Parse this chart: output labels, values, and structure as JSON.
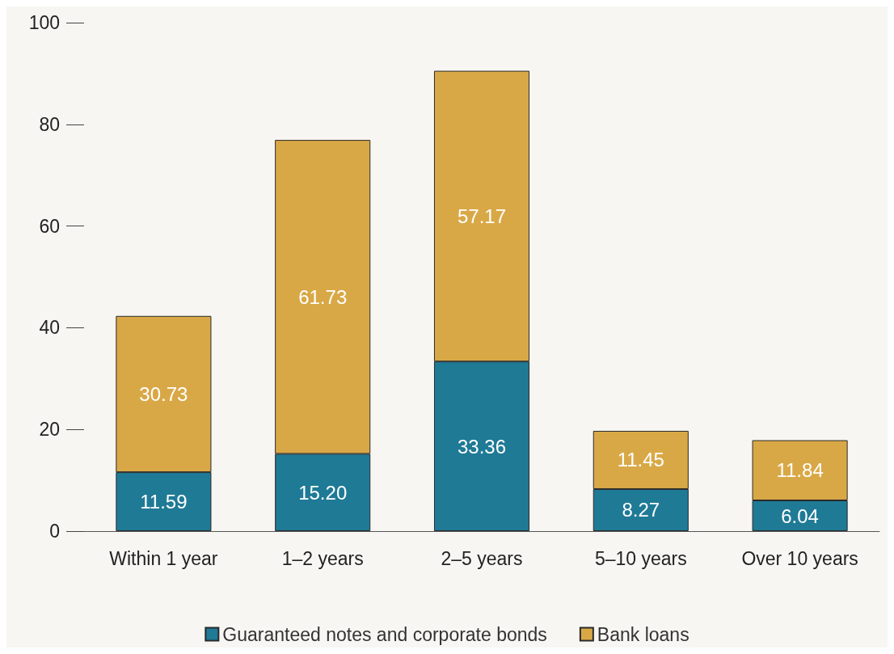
{
  "chart_data": {
    "type": "bar",
    "stacked": true,
    "categories": [
      "Within 1 year",
      "1–2 years",
      "2–5 years",
      "5–10 years",
      "Over 10 years"
    ],
    "series": [
      {
        "name": "Guaranteed notes and corporate bonds",
        "color": "#1f7a96",
        "values": [
          11.59,
          15.2,
          33.36,
          8.27,
          6.04
        ],
        "value_labels": [
          "11.59",
          "15.20",
          "33.36",
          "8.27",
          "6.04"
        ]
      },
      {
        "name": "Bank loans",
        "color": "#d9a846",
        "values": [
          30.73,
          61.73,
          57.17,
          11.45,
          11.84
        ],
        "value_labels": [
          "30.73",
          "61.73",
          "57.17",
          "11.45",
          "11.84"
        ]
      }
    ],
    "ylim": [
      0,
      100
    ],
    "yticks": [
      0,
      20,
      40,
      60,
      80,
      100
    ],
    "grid": false,
    "legend": "bottom"
  }
}
